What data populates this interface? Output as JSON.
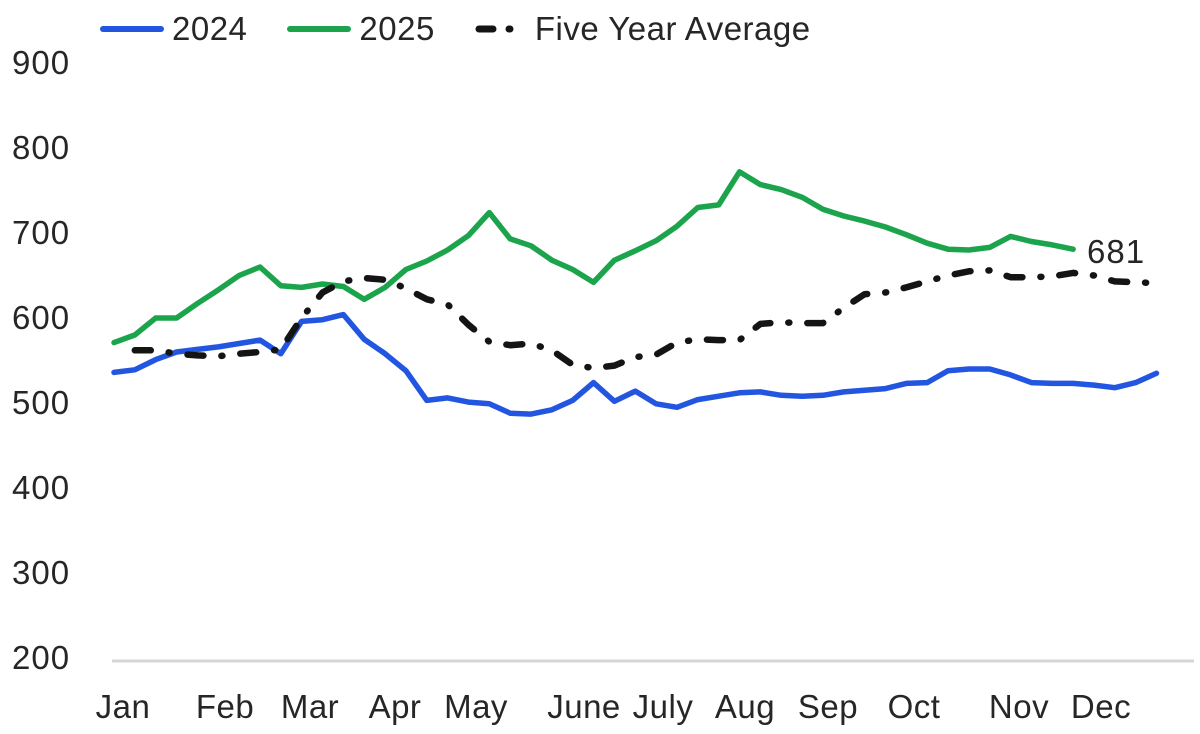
{
  "chart_data": {
    "type": "line",
    "title": "",
    "xlabel": "",
    "ylabel": "",
    "x_unit": "week_of_year",
    "ylim": [
      200,
      900
    ],
    "y_ticks": [
      900,
      800,
      700,
      600,
      500,
      400,
      300,
      200
    ],
    "x_tick_labels": [
      "Jan",
      "Feb",
      "Mar",
      "Apr",
      "May",
      "June",
      "July",
      "Aug",
      "Sep",
      "Oct",
      "Nov",
      "Dec"
    ],
    "grid": false,
    "legend_position": "top-left",
    "axis_line_color": "#d6d6d6",
    "text_color": "#262626",
    "series": [
      {
        "name": "2024",
        "color": "#2356e0",
        "style": "solid",
        "start_week": 0,
        "values": [
          536,
          539,
          551,
          560,
          563,
          566,
          570,
          574,
          558,
          596,
          598,
          604,
          575,
          558,
          538,
          503,
          506,
          501,
          499,
          488,
          487,
          492,
          503,
          524,
          502,
          514,
          499,
          495,
          504,
          508,
          512,
          513,
          509,
          508,
          509,
          513,
          515,
          517,
          523,
          524,
          538,
          540,
          540,
          533,
          524,
          523,
          523,
          521,
          518,
          524,
          535
        ]
      },
      {
        "name": "2025",
        "color": "#1ca44c",
        "style": "solid",
        "start_week": 0,
        "values": [
          571,
          580,
          600,
          600,
          617,
          633,
          650,
          660,
          638,
          636,
          640,
          637,
          622,
          636,
          657,
          667,
          680,
          697,
          724,
          693,
          685,
          668,
          657,
          642,
          668,
          679,
          691,
          708,
          730,
          733,
          772,
          757,
          751,
          742,
          728,
          720,
          714,
          707,
          698,
          688,
          681,
          680,
          683,
          696,
          690,
          686,
          681
        ]
      },
      {
        "name": "Five Year Average",
        "color": "#141414",
        "style": "dashdot",
        "start_week": 1,
        "values": [
          562,
          562,
          558,
          556,
          555,
          558,
          560,
          563,
          600,
          630,
          643,
          647,
          645,
          635,
          622,
          616,
          592,
          572,
          568,
          570,
          562,
          545,
          541,
          544,
          554,
          557,
          571,
          575,
          574,
          574,
          593,
          595,
          594,
          594,
          612,
          628,
          630,
          636,
          643,
          650,
          655,
          656,
          648,
          648,
          649,
          653,
          650,
          643,
          642,
          641
        ]
      }
    ],
    "annotation": {
      "text": "681",
      "attached_to_series": "2025",
      "value": 681
    }
  },
  "legend": {
    "items": [
      {
        "label": "2024"
      },
      {
        "label": "2025"
      },
      {
        "label": "Five Year Average"
      }
    ]
  }
}
